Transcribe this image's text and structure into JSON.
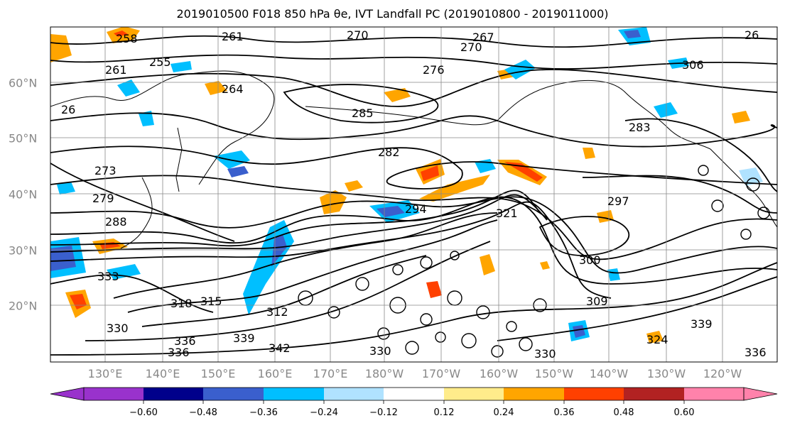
{
  "title": "2019010500 F018 850 hPa θe, IVT Landfall PC (2019010800 - 2019011000)",
  "lon_labels": [
    "130°E",
    "140°E",
    "150°E",
    "160°E",
    "170°E",
    "180°W",
    "170°W",
    "160°W",
    "150°W",
    "140°W",
    "130°W",
    "120°W"
  ],
  "lat_labels": [
    "60°N",
    "50°N",
    "40°N",
    "30°N",
    "20°N"
  ],
  "contour_labels": [
    "258",
    "261",
    "267",
    "270",
    "270",
    "276",
    "255",
    "264",
    "261",
    "26",
    "285",
    "282",
    "273",
    "279",
    "288",
    "297",
    "294",
    "321",
    "300",
    "309",
    "318",
    "315",
    "312",
    "330",
    "336",
    "336",
    "339",
    "342",
    "333",
    "330",
    "339",
    "324",
    "336",
    "26",
    "283",
    "306",
    "330"
  ],
  "colorbar": {
    "ticks": [
      "−0.60",
      "−0.48",
      "−0.36",
      "−0.24",
      "−0.12",
      "0.12",
      "0.24",
      "0.36",
      "0.48",
      "0.60"
    ],
    "colors": [
      "#9932cc",
      "#00008b",
      "#3a5fcd",
      "#00bfff",
      "#b0e2ff",
      "#ffffff",
      "#ffec8b",
      "#ffa500",
      "#ff4000",
      "#b22222",
      "#ff82ab"
    ]
  }
}
